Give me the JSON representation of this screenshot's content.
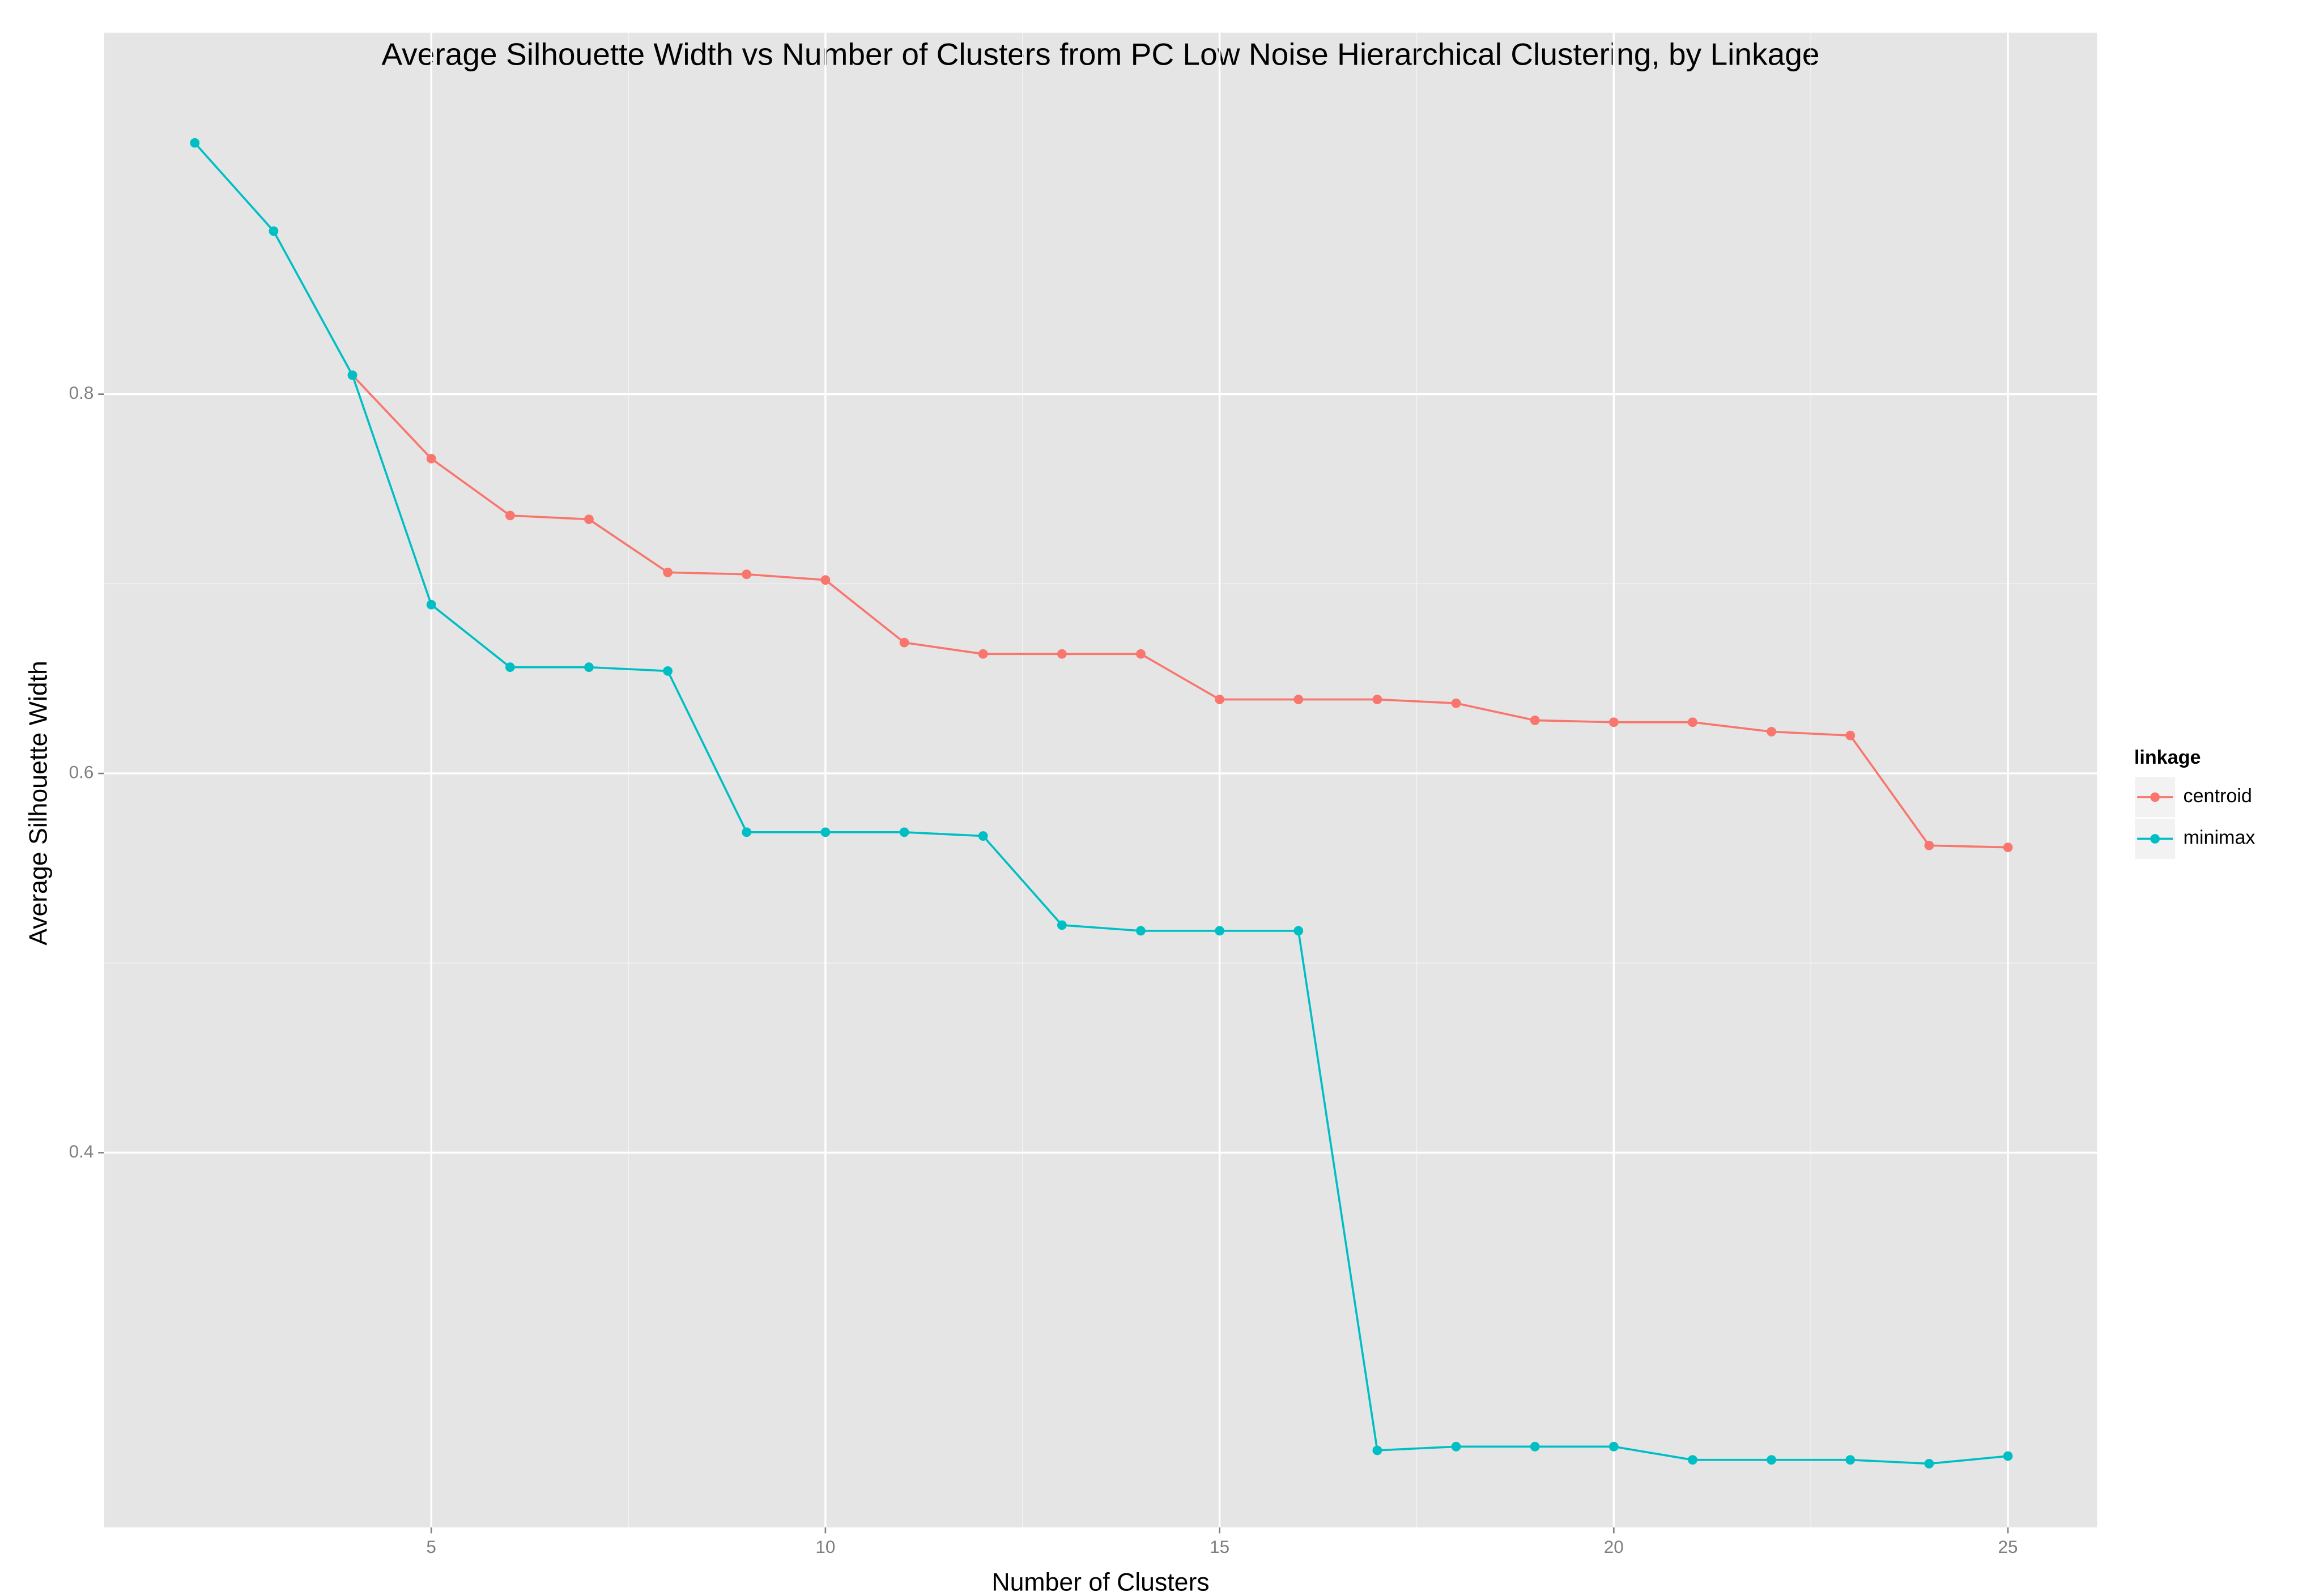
{
  "chart_data": {
    "type": "line",
    "title": "Average Silhouette Width vs Number of Clusters from PC Low Noise Hierarchical Clustering, by Linkage",
    "x_label": "Number of Clusters",
    "y_label": "Average Silhouette Width",
    "x": [
      2,
      3,
      4,
      5,
      6,
      7,
      8,
      9,
      10,
      11,
      12,
      13,
      14,
      15,
      16,
      17,
      18,
      19,
      20,
      21,
      22,
      23,
      24,
      25
    ],
    "series": [
      {
        "name": "centroid",
        "color": "#f8766d",
        "values": [
          null,
          null,
          0.81,
          0.766,
          0.736,
          0.734,
          0.706,
          0.705,
          0.702,
          0.669,
          0.663,
          0.663,
          0.663,
          0.639,
          0.639,
          0.639,
          0.637,
          0.628,
          0.627,
          0.627,
          0.622,
          0.62,
          0.562,
          0.561
        ]
      },
      {
        "name": "minimax",
        "color": "#00bfc4",
        "values": [
          0.9325,
          0.886,
          0.81,
          0.689,
          0.656,
          0.656,
          0.654,
          0.569,
          0.569,
          0.569,
          0.567,
          0.52,
          0.517,
          0.517,
          0.517,
          0.243,
          0.245,
          0.245,
          0.245,
          0.238,
          0.238,
          0.238,
          0.236,
          0.24
        ]
      }
    ],
    "xlim": [
      0.85,
      26.13
    ],
    "ylim": [
      0.2024,
      0.9906
    ],
    "xticks": [
      5,
      10,
      15,
      20,
      25
    ],
    "yticks": [
      0.4,
      0.6,
      0.8
    ],
    "grid": true,
    "legend_title": "linkage",
    "legend_position": "right"
  }
}
